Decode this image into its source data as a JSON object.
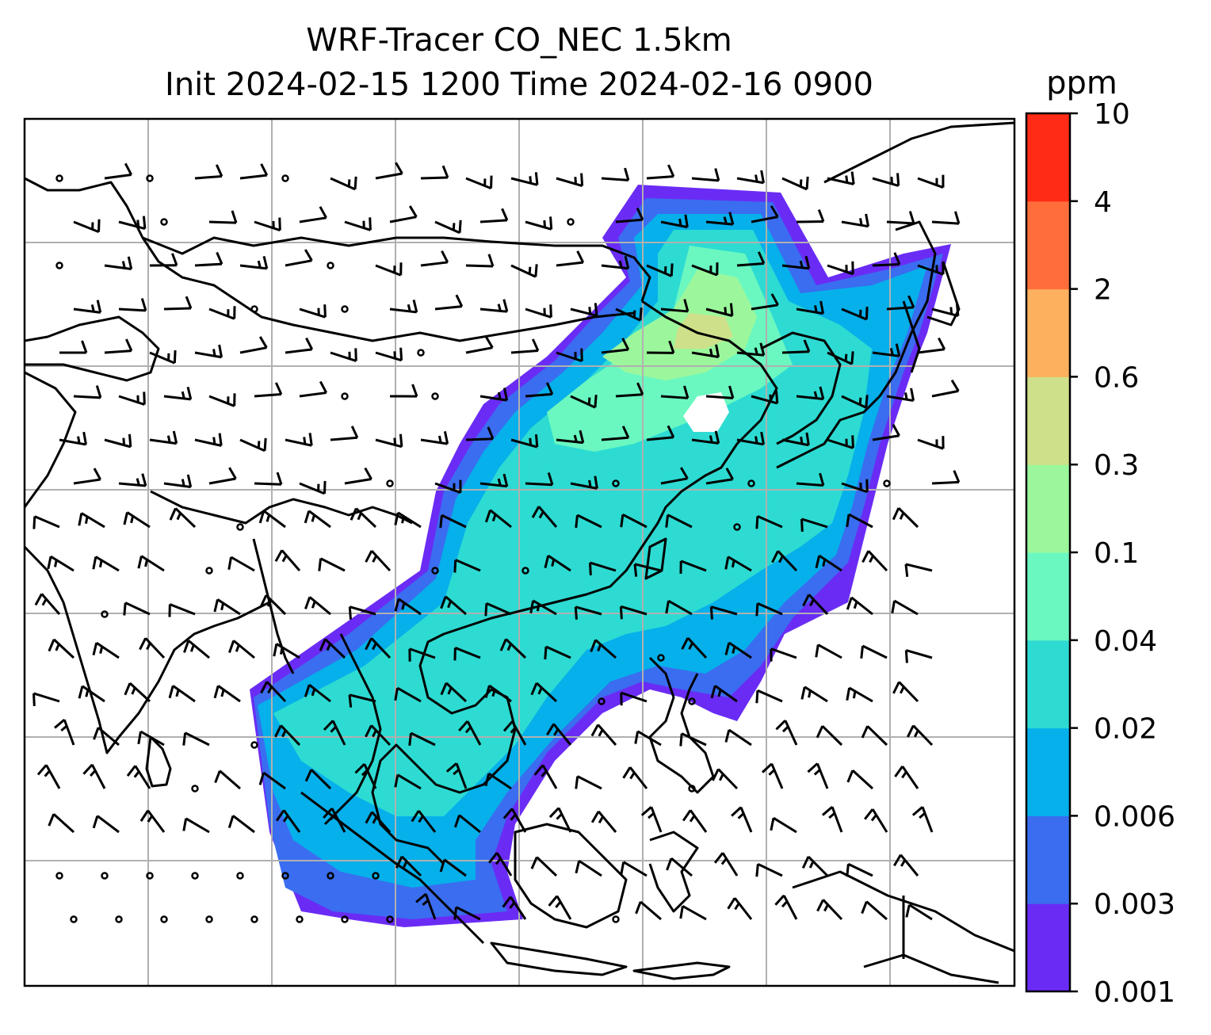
{
  "title_line1": "WRF-Tracer CO_NEC 1.5km",
  "title_line2": "Init 2024-02-15 1200 Time 2024-02-16 0900",
  "colorbar": {
    "unit": "ppm",
    "ticks": [
      "0.001",
      "0.003",
      "0.006",
      "0.02",
      "0.04",
      "0.1",
      "0.3",
      "0.6",
      "2",
      "4",
      "10"
    ],
    "colors": [
      "#6a2cf5",
      "#3a6df0",
      "#06b0ea",
      "#2ddbd2",
      "#6af8c0",
      "#9cf79c",
      "#cfe08a",
      "#fdb05e",
      "#ff6e3a",
      "#ff2b16"
    ]
  },
  "map": {
    "gridlines": true,
    "background": "#ffffff",
    "coastline_color": "#000000",
    "grid_color": "#b0b0b0"
  }
}
